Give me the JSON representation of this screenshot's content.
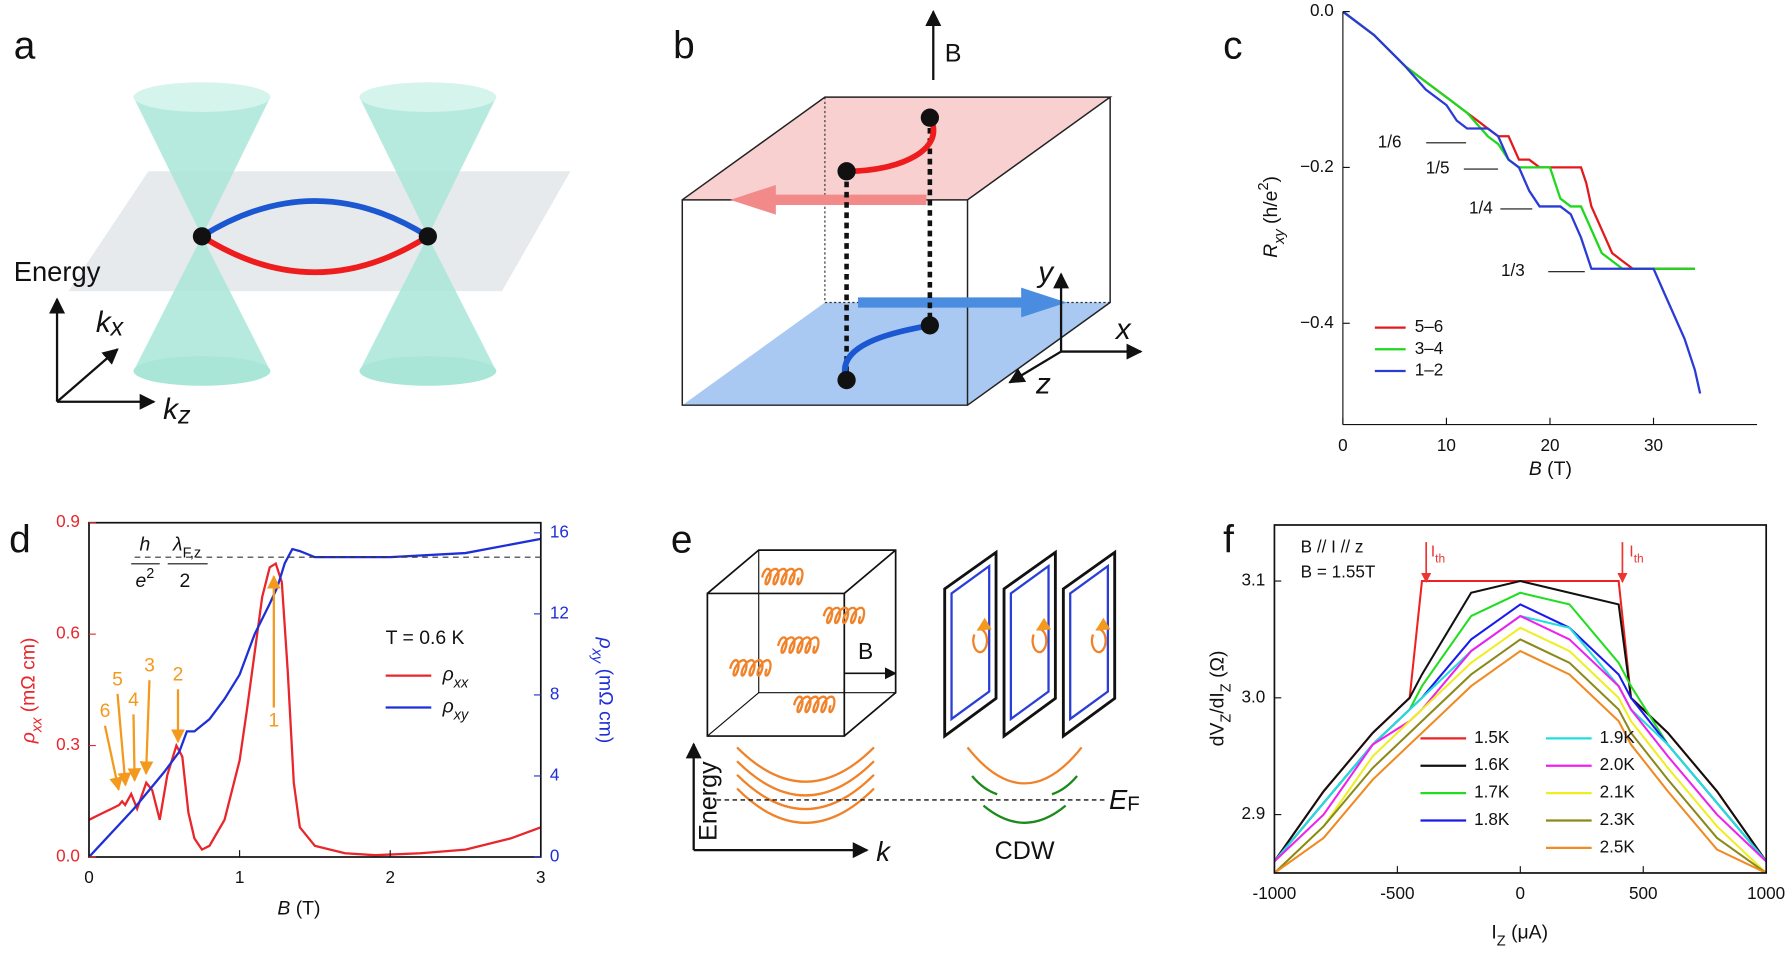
{
  "panel_labels": [
    "a",
    "b",
    "c",
    "d",
    "e",
    "f"
  ],
  "diagram_a": {
    "energy_label": "Energy",
    "kx": [
      "k",
      "x"
    ],
    "kz": [
      "k",
      "z"
    ]
  },
  "diagram_b": {
    "field_label": "B",
    "axis_labels": [
      "y",
      "x",
      "z"
    ]
  },
  "diagram_e": {
    "field_label": "B",
    "energy_label": "Energy",
    "k_label": "k",
    "fermi_label": [
      "E",
      "F"
    ],
    "cdw_label": "CDW"
  },
  "chart_data": [
    {
      "type": "line",
      "x_label": [
        "B",
        " (T)"
      ],
      "y_label": [
        "R",
        "xy",
        " (h/e",
        "2",
        ")"
      ],
      "xlim": [
        0,
        40
      ],
      "ylim": [
        -0.53,
        0
      ],
      "xticks": [
        0,
        10,
        20,
        30
      ],
      "yticks": [
        {
          "value": 0,
          "label": "0.0"
        },
        {
          "value": -0.2,
          "label": "−0.2"
        },
        {
          "value": -0.4,
          "label": "−0.4"
        }
      ],
      "annotations": [
        "1/6",
        "1/5",
        "1/4",
        "1/3"
      ],
      "series": [
        {
          "name": "5–6",
          "color": "#e31a1c",
          "x": [
            0,
            3,
            6,
            8,
            10,
            12,
            13,
            14,
            15,
            16,
            17,
            18,
            19,
            20,
            21,
            22,
            23,
            23.5,
            24,
            25,
            26,
            27,
            28,
            29,
            30,
            31,
            32,
            33,
            34
          ],
          "values": [
            0,
            -0.03,
            -0.07,
            -0.09,
            -0.11,
            -0.13,
            -0.14,
            -0.15,
            -0.16,
            -0.16,
            -0.19,
            -0.19,
            -0.2,
            -0.2,
            -0.2,
            -0.2,
            -0.2,
            -0.22,
            -0.25,
            -0.28,
            -0.31,
            -0.32,
            -0.33,
            -0.33,
            -0.33,
            -0.33,
            -0.33,
            -0.33,
            -0.33
          ]
        },
        {
          "name": "3–4",
          "color": "#1dd81d",
          "x": [
            0,
            3,
            6,
            8,
            10,
            12,
            14,
            15,
            16,
            17,
            18,
            19,
            20,
            21,
            22,
            23,
            24,
            25,
            26,
            27,
            28,
            30,
            32,
            34
          ],
          "values": [
            0,
            -0.03,
            -0.07,
            -0.09,
            -0.11,
            -0.13,
            -0.16,
            -0.17,
            -0.19,
            -0.2,
            -0.2,
            -0.2,
            -0.2,
            -0.24,
            -0.25,
            -0.25,
            -0.28,
            -0.31,
            -0.32,
            -0.33,
            -0.33,
            -0.33,
            -0.33,
            -0.33
          ]
        },
        {
          "name": "1–2",
          "color": "#2b3bd6",
          "x": [
            0,
            3,
            6,
            8,
            10,
            11,
            12,
            13,
            14,
            15,
            16,
            17,
            18,
            19,
            20,
            21,
            22,
            23,
            24,
            25,
            26,
            28,
            30,
            31,
            32,
            33,
            34,
            34.5
          ],
          "values": [
            0,
            -0.03,
            -0.07,
            -0.1,
            -0.12,
            -0.14,
            -0.15,
            -0.15,
            -0.15,
            -0.16,
            -0.19,
            -0.2,
            -0.23,
            -0.25,
            -0.25,
            -0.25,
            -0.26,
            -0.29,
            -0.33,
            -0.33,
            -0.33,
            -0.33,
            -0.33,
            -0.36,
            -0.39,
            -0.42,
            -0.46,
            -0.49
          ]
        }
      ]
    },
    {
      "type": "line",
      "x_label": [
        "B",
        " (T)"
      ],
      "y_label": [
        "ρ",
        "xx",
        " (mΩ cm)"
      ],
      "y2_label": [
        "ρ",
        "xy",
        " (mΩ cm)"
      ],
      "xlim": [
        0,
        3
      ],
      "ylim": [
        0,
        0.9
      ],
      "y2lim": [
        0,
        16.5
      ],
      "xticks": [
        0,
        1,
        2,
        3
      ],
      "yticks": [
        {
          "value": 0,
          "label": "0.0"
        },
        0.3,
        0.6,
        0.9
      ],
      "y2ticks": [
        0,
        4,
        8,
        12,
        16
      ],
      "temperature_label": "T = 0.6 K",
      "formula": [
        "h",
        "e",
        "2",
        "λ",
        "F,z",
        "2"
      ],
      "plateau_y2": 14.8,
      "peak_labels": [
        "6",
        "5",
        "4",
        "3",
        "2",
        "1"
      ],
      "series": [
        {
          "name": [
            "ρ",
            "xx"
          ],
          "color": "#e8262b",
          "x": [
            0,
            0.1,
            0.15,
            0.2,
            0.22,
            0.24,
            0.28,
            0.32,
            0.38,
            0.42,
            0.47,
            0.52,
            0.58,
            0.62,
            0.66,
            0.7,
            0.75,
            0.8,
            0.9,
            1.0,
            1.05,
            1.1,
            1.15,
            1.2,
            1.24,
            1.28,
            1.32,
            1.36,
            1.4,
            1.5,
            1.7,
            1.9,
            2.2,
            2.5,
            2.8,
            3.0
          ],
          "values": [
            0.1,
            0.12,
            0.13,
            0.14,
            0.15,
            0.14,
            0.17,
            0.13,
            0.2,
            0.18,
            0.1,
            0.22,
            0.3,
            0.27,
            0.12,
            0.05,
            0.02,
            0.03,
            0.1,
            0.26,
            0.4,
            0.55,
            0.7,
            0.78,
            0.79,
            0.74,
            0.5,
            0.2,
            0.08,
            0.03,
            0.01,
            0.005,
            0.01,
            0.02,
            0.05,
            0.08
          ]
        },
        {
          "name": [
            "ρ",
            "xy"
          ],
          "color": "#1f2fd6",
          "axis": "y2",
          "x": [
            0,
            0.1,
            0.2,
            0.3,
            0.4,
            0.5,
            0.6,
            0.65,
            0.7,
            0.8,
            0.9,
            1.0,
            1.1,
            1.2,
            1.25,
            1.3,
            1.35,
            1.4,
            1.5,
            2.0,
            2.5,
            3.0
          ],
          "values": [
            0,
            0.8,
            1.6,
            2.4,
            3.3,
            4.2,
            5.2,
            6.2,
            6.2,
            6.8,
            7.8,
            9,
            11,
            12.5,
            13.3,
            14.5,
            15.2,
            15.1,
            14.8,
            14.8,
            15,
            15.7
          ]
        }
      ]
    },
    {
      "type": "line",
      "x_label": [
        "I",
        "Z",
        " (μA)"
      ],
      "y_label": [
        "dV",
        "Z",
        "/dI",
        "Z",
        " (Ω)"
      ],
      "xlim": [
        -1000,
        1000
      ],
      "ylim": [
        2.85,
        3.148
      ],
      "xticks": [
        -1000,
        -500,
        0,
        500,
        1000
      ],
      "yticks": [
        2.9,
        {
          "value": 3,
          "label": "3.0"
        },
        3.1
      ],
      "annotations": [
        "B // I // z",
        "B = 1.55T"
      ],
      "threshold_label": [
        "I",
        "th"
      ],
      "x": [
        -1000,
        -800,
        -600,
        -450,
        -400,
        -200,
        0,
        200,
        400,
        450,
        600,
        800,
        1000
      ],
      "series": [
        {
          "name": "1.5K",
          "color": "#ee2222",
          "values": [
            2.86,
            2.92,
            2.97,
            3.0,
            3.1,
            3.1,
            3.1,
            3.1,
            3.1,
            3.0,
            2.97,
            2.92,
            2.86
          ]
        },
        {
          "name": "1.6K",
          "color": "#111111",
          "values": [
            2.86,
            2.92,
            2.97,
            3.0,
            3.02,
            3.09,
            3.1,
            3.09,
            3.08,
            3.0,
            2.97,
            2.92,
            2.86
          ]
        },
        {
          "name": "1.7K",
          "color": "#22dd22",
          "values": [
            2.86,
            2.91,
            2.96,
            2.99,
            3.01,
            3.07,
            3.09,
            3.08,
            3.03,
            3.01,
            2.96,
            2.91,
            2.86
          ]
        },
        {
          "name": "1.8K",
          "color": "#1a1aee",
          "values": [
            2.86,
            2.91,
            2.96,
            2.99,
            3.0,
            3.05,
            3.08,
            3.06,
            3.02,
            3.0,
            2.96,
            2.91,
            2.86
          ]
        },
        {
          "name": "1.9K",
          "color": "#22dddd",
          "values": [
            2.86,
            2.91,
            2.96,
            2.99,
            3.0,
            3.04,
            3.07,
            3.06,
            3.01,
            2.99,
            2.96,
            2.91,
            2.86
          ]
        },
        {
          "name": "2.0K",
          "color": "#ee22ee",
          "values": [
            2.86,
            2.9,
            2.96,
            2.98,
            2.99,
            3.04,
            3.07,
            3.05,
            3.01,
            2.99,
            2.95,
            2.9,
            2.86
          ]
        },
        {
          "name": "2.1K",
          "color": "#eeee22",
          "values": [
            2.85,
            2.89,
            2.95,
            2.98,
            2.99,
            3.03,
            3.06,
            3.04,
            3.0,
            2.98,
            2.94,
            2.89,
            2.85
          ]
        },
        {
          "name": "2.3K",
          "color": "#8a8a1a",
          "values": [
            2.85,
            2.89,
            2.94,
            2.97,
            2.98,
            3.02,
            3.05,
            3.03,
            2.99,
            2.97,
            2.93,
            2.88,
            2.85
          ]
        },
        {
          "name": "2.5K",
          "color": "#f08a22",
          "values": [
            2.85,
            2.88,
            2.93,
            2.96,
            2.97,
            3.01,
            3.04,
            3.02,
            2.98,
            2.96,
            2.92,
            2.87,
            2.85
          ]
        }
      ]
    }
  ]
}
